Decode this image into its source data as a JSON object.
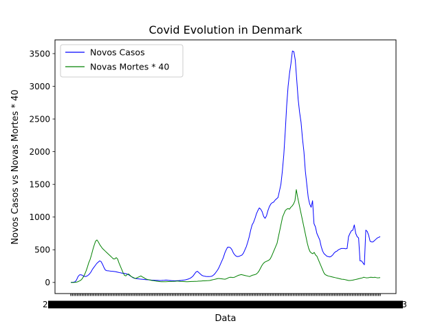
{
  "chart_data": {
    "type": "line",
    "title": "Covid Evolution in Denmark",
    "xlabel": "Data",
    "ylabel": "Novos Casos vs Novas Mortes * 40",
    "ylim": [
      -170,
      3710
    ],
    "yticks": [
      0,
      500,
      1000,
      1500,
      2000,
      2500,
      3000,
      3500
    ],
    "x_tick_label_first": "2",
    "x_tick_label_last": "3",
    "x_tick_count": 190,
    "grid": false,
    "legend": "upper-left",
    "series": [
      {
        "name": "Novos Casos",
        "color": "#0000ff",
        "values": [
          2,
          3,
          5,
          10,
          40,
          90,
          115,
          118,
          110,
          95,
          90,
          95,
          110,
          130,
          160,
          200,
          230,
          260,
          290,
          310,
          330,
          320,
          280,
          230,
          190,
          180,
          178,
          175,
          172,
          170,
          168,
          165,
          160,
          155,
          150,
          145,
          140,
          140,
          135,
          130,
          120,
          105,
          90,
          75,
          65,
          60,
          58,
          55,
          52,
          50,
          48,
          45,
          43,
          42,
          40,
          38,
          36,
          35,
          34,
          33,
          32,
          31,
          30,
          31,
          33,
          34,
          36,
          35,
          32,
          30,
          28,
          27,
          26,
          26,
          27,
          28,
          30,
          32,
          35,
          38,
          42,
          48,
          55,
          65,
          80,
          100,
          130,
          160,
          170,
          150,
          130,
          110,
          100,
          95,
          92,
          90,
          90,
          92,
          95,
          110,
          130,
          160,
          190,
          230,
          280,
          330,
          380,
          450,
          500,
          540,
          540,
          530,
          500,
          450,
          420,
          400,
          395,
          400,
          410,
          420,
          450,
          500,
          550,
          620,
          700,
          800,
          880,
          920,
          980,
          1050,
          1100,
          1140,
          1120,
          1080,
          1010,
          980,
          1020,
          1100,
          1160,
          1200,
          1220,
          1230,
          1260,
          1280,
          1300,
          1400,
          1500,
          1700,
          1950,
          2300,
          2700,
          3000,
          3200,
          3350,
          3540,
          3530,
          3400,
          3100,
          2800,
          2600,
          2450,
          2200,
          2000,
          1700,
          1500,
          1300,
          1200,
          1150,
          1250,
          900,
          850,
          750,
          700,
          650,
          550,
          480,
          440,
          420,
          400,
          395,
          390,
          400,
          420,
          450,
          470,
          480,
          500,
          510,
          520,
          520,
          520,
          515,
          520,
          700,
          750,
          790,
          800,
          880,
          750,
          700,
          680,
          330,
          330,
          300,
          270,
          800,
          780,
          720,
          630,
          620,
          620,
          640,
          660,
          680,
          690,
          700
        ]
      },
      {
        "name": "Novas Mortes * 40",
        "color": "#008000",
        "values": [
          0,
          0,
          0,
          2,
          5,
          10,
          20,
          30,
          50,
          80,
          120,
          170,
          230,
          300,
          350,
          420,
          500,
          570,
          630,
          650,
          620,
          580,
          550,
          520,
          500,
          480,
          460,
          440,
          420,
          400,
          380,
          360,
          360,
          380,
          360,
          300,
          250,
          200,
          150,
          110,
          100,
          120,
          130,
          110,
          90,
          80,
          70,
          60,
          70,
          80,
          90,
          100,
          85,
          75,
          60,
          50,
          45,
          40,
          35,
          30,
          28,
          25,
          20,
          18,
          15,
          13,
          12,
          12,
          12,
          12,
          13,
          14,
          15,
          15,
          16,
          17,
          18,
          20,
          20,
          18,
          16,
          15,
          14,
          13,
          12,
          12,
          13,
          14,
          15,
          15,
          16,
          17,
          18,
          20,
          20,
          22,
          24,
          25,
          26,
          27,
          28,
          30,
          35,
          40,
          45,
          50,
          55,
          60,
          60,
          58,
          55,
          52,
          50,
          55,
          65,
          75,
          80,
          78,
          75,
          80,
          90,
          100,
          110,
          115,
          120,
          115,
          110,
          105,
          100,
          95,
          90,
          100,
          110,
          115,
          120,
          130,
          150,
          180,
          220,
          260,
          290,
          310,
          320,
          330,
          340,
          360,
          400,
          450,
          500,
          550,
          600,
          700,
          800,
          900,
          1000,
          1050,
          1100,
          1120,
          1130,
          1120,
          1150,
          1170,
          1200,
          1250,
          1420,
          1300,
          1200,
          1100,
          1000,
          900,
          800,
          700,
          600,
          520,
          470,
          450,
          440,
          460,
          420,
          400,
          350,
          300,
          250,
          200,
          150,
          120,
          110,
          100,
          95,
          90,
          85,
          80,
          75,
          70,
          65,
          60,
          55,
          50,
          48,
          45,
          40,
          35,
          30,
          30,
          32,
          35,
          40,
          45,
          50,
          55,
          60,
          65,
          70,
          80,
          75,
          70,
          72,
          75,
          80,
          78,
          75,
          80,
          75,
          70,
          72,
          75
        ]
      }
    ]
  }
}
